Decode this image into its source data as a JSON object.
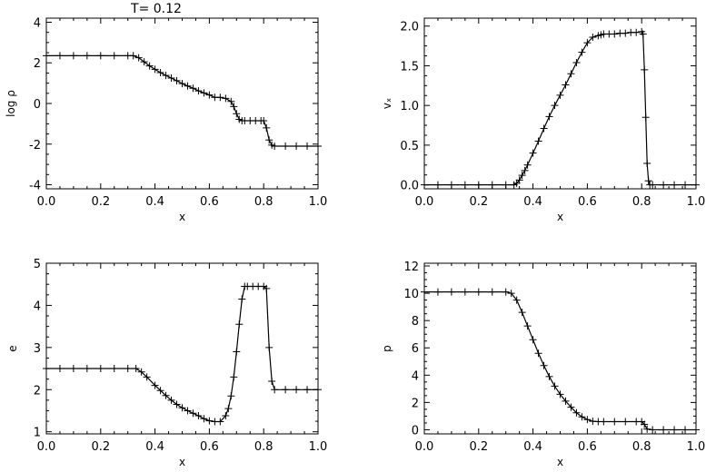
{
  "figure": {
    "title": "T=  0.12"
  },
  "chart_data": [
    {
      "type": "line",
      "xlabel": "x",
      "ylabel": "log ρ",
      "xlim": [
        0.0,
        1.0
      ],
      "ylim": [
        -4.2,
        4.2
      ],
      "xticks": [
        "0.0",
        "0.2",
        "0.4",
        "0.6",
        "0.8",
        "1.0"
      ],
      "yticks": [
        "-4",
        "-2",
        "0",
        "2",
        "4"
      ],
      "marker": "plus",
      "grid": false,
      "x": [
        0.0,
        0.05,
        0.1,
        0.15,
        0.2,
        0.25,
        0.3,
        0.32,
        0.34,
        0.36,
        0.38,
        0.4,
        0.42,
        0.44,
        0.46,
        0.48,
        0.5,
        0.52,
        0.54,
        0.56,
        0.58,
        0.6,
        0.62,
        0.64,
        0.66,
        0.68,
        0.69,
        0.7,
        0.71,
        0.72,
        0.73,
        0.75,
        0.77,
        0.79,
        0.8,
        0.81,
        0.82,
        0.83,
        0.84,
        0.88,
        0.92,
        0.96,
        1.0
      ],
      "y": [
        2.35,
        2.35,
        2.35,
        2.35,
        2.35,
        2.35,
        2.35,
        2.35,
        2.25,
        2.05,
        1.85,
        1.68,
        1.52,
        1.38,
        1.25,
        1.12,
        0.98,
        0.86,
        0.75,
        0.62,
        0.52,
        0.42,
        0.3,
        0.3,
        0.25,
        0.1,
        -0.15,
        -0.5,
        -0.78,
        -0.85,
        -0.85,
        -0.85,
        -0.85,
        -0.85,
        -0.85,
        -1.2,
        -1.8,
        -2.05,
        -2.1,
        -2.1,
        -2.1,
        -2.1,
        -2.1
      ]
    },
    {
      "type": "line",
      "xlabel": "x",
      "ylabel": "vₓ",
      "xlim": [
        0.0,
        1.0
      ],
      "ylim": [
        -0.05,
        2.1
      ],
      "xticks": [
        "0.0",
        "0.2",
        "0.4",
        "0.6",
        "0.8",
        "1.0"
      ],
      "yticks": [
        "0.0",
        "0.5",
        "1.0",
        "1.5",
        "2.0"
      ],
      "marker": "plus",
      "grid": false,
      "x": [
        0.0,
        0.05,
        0.1,
        0.15,
        0.2,
        0.25,
        0.3,
        0.33,
        0.34,
        0.35,
        0.36,
        0.37,
        0.38,
        0.4,
        0.42,
        0.44,
        0.46,
        0.48,
        0.5,
        0.52,
        0.54,
        0.56,
        0.58,
        0.6,
        0.62,
        0.64,
        0.65,
        0.66,
        0.68,
        0.7,
        0.72,
        0.74,
        0.76,
        0.78,
        0.8,
        0.805,
        0.81,
        0.815,
        0.82,
        0.825,
        0.83,
        0.84,
        0.88,
        0.92,
        0.96,
        1.0
      ],
      "y": [
        0.0,
        0.0,
        0.0,
        0.0,
        0.0,
        0.0,
        0.0,
        0.0,
        0.02,
        0.06,
        0.12,
        0.18,
        0.25,
        0.4,
        0.55,
        0.71,
        0.86,
        1.0,
        1.13,
        1.26,
        1.4,
        1.54,
        1.67,
        1.79,
        1.86,
        1.88,
        1.89,
        1.9,
        1.9,
        1.9,
        1.91,
        1.91,
        1.92,
        1.92,
        1.93,
        1.9,
        1.45,
        0.85,
        0.27,
        0.05,
        0.0,
        0.0,
        0.0,
        0.0,
        0.0,
        0.0
      ]
    },
    {
      "type": "line",
      "xlabel": "x",
      "ylabel": "e",
      "xlim": [
        0.0,
        1.0
      ],
      "ylim": [
        0.95,
        5.0
      ],
      "xticks": [
        "0.0",
        "0.2",
        "0.4",
        "0.6",
        "0.8",
        "1.0"
      ],
      "yticks": [
        "1",
        "2",
        "3",
        "4",
        "5"
      ],
      "marker": "plus",
      "grid": false,
      "x": [
        0.0,
        0.05,
        0.1,
        0.15,
        0.2,
        0.25,
        0.3,
        0.33,
        0.35,
        0.37,
        0.4,
        0.42,
        0.44,
        0.46,
        0.48,
        0.5,
        0.52,
        0.54,
        0.56,
        0.58,
        0.6,
        0.62,
        0.64,
        0.66,
        0.67,
        0.68,
        0.69,
        0.7,
        0.71,
        0.72,
        0.73,
        0.74,
        0.76,
        0.78,
        0.8,
        0.81,
        0.82,
        0.83,
        0.84,
        0.88,
        0.92,
        0.96,
        1.0
      ],
      "y": [
        2.5,
        2.5,
        2.5,
        2.5,
        2.5,
        2.5,
        2.5,
        2.5,
        2.42,
        2.3,
        2.1,
        1.98,
        1.86,
        1.75,
        1.65,
        1.57,
        1.5,
        1.44,
        1.38,
        1.31,
        1.26,
        1.24,
        1.24,
        1.38,
        1.55,
        1.85,
        2.3,
        2.9,
        3.55,
        4.15,
        4.45,
        4.45,
        4.45,
        4.45,
        4.45,
        4.4,
        3.0,
        2.2,
        2.0,
        2.0,
        2.0,
        2.0,
        2.0
      ]
    },
    {
      "type": "line",
      "xlabel": "x",
      "ylabel": "p",
      "xlim": [
        0.0,
        1.0
      ],
      "ylim": [
        -0.3,
        12.2
      ],
      "xticks": [
        "0.0",
        "0.2",
        "0.4",
        "0.6",
        "0.8",
        "1.0"
      ],
      "yticks": [
        "0",
        "2",
        "4",
        "6",
        "8",
        "10",
        "12"
      ],
      "marker": "plus",
      "grid": false,
      "x": [
        0.0,
        0.05,
        0.1,
        0.15,
        0.2,
        0.25,
        0.3,
        0.32,
        0.34,
        0.36,
        0.38,
        0.4,
        0.42,
        0.44,
        0.46,
        0.48,
        0.5,
        0.52,
        0.54,
        0.56,
        0.58,
        0.6,
        0.62,
        0.64,
        0.66,
        0.7,
        0.74,
        0.78,
        0.8,
        0.81,
        0.82,
        0.84,
        0.88,
        0.92,
        0.96,
        1.0
      ],
      "y": [
        10.1,
        10.1,
        10.1,
        10.1,
        10.1,
        10.1,
        10.1,
        10.0,
        9.5,
        8.6,
        7.6,
        6.6,
        5.6,
        4.7,
        3.9,
        3.2,
        2.6,
        2.1,
        1.65,
        1.25,
        0.95,
        0.75,
        0.62,
        0.6,
        0.6,
        0.6,
        0.6,
        0.6,
        0.6,
        0.4,
        0.05,
        0.0,
        0.0,
        0.0,
        0.0,
        0.0
      ]
    }
  ]
}
